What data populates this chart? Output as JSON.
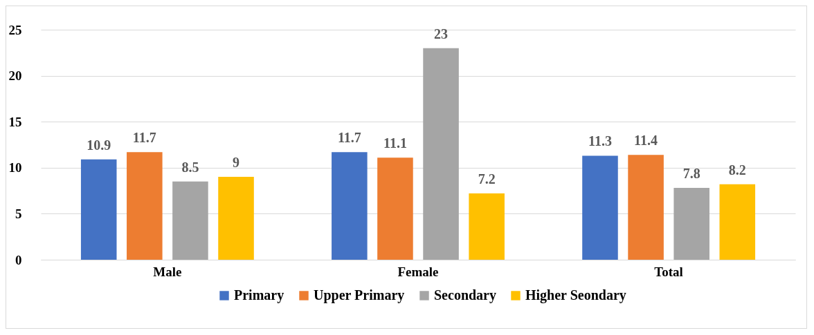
{
  "chart_data": {
    "type": "bar",
    "categories": [
      "Male",
      "Female",
      "Total"
    ],
    "series": [
      {
        "name": "Primary",
        "color": "#4472c4",
        "values": [
          10.9,
          11.7,
          11.3
        ]
      },
      {
        "name": "Upper Primary",
        "color": "#ed7d31",
        "values": [
          11.7,
          11.1,
          11.4
        ]
      },
      {
        "name": "Secondary",
        "color": "#a5a5a5",
        "values": [
          8.5,
          23,
          7.8
        ]
      },
      {
        "name": "Higher Seondary",
        "color": "#ffc000",
        "values": [
          9,
          7.2,
          8.2
        ]
      }
    ],
    "ylim": [
      0,
      25
    ],
    "yticks": [
      0,
      5,
      10,
      15,
      20,
      25
    ],
    "grid": "y",
    "legend": "bottom",
    "data_labels": true
  }
}
